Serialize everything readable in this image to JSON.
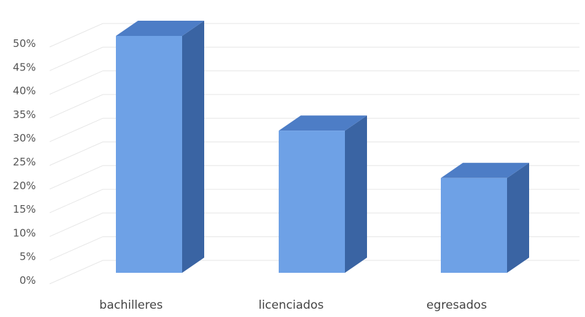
{
  "chart_data": {
    "type": "bar",
    "style": "3d-column",
    "categories": [
      "bachilleres",
      "licenciados",
      "egresados"
    ],
    "values": [
      50,
      30,
      20
    ],
    "unit": "%",
    "ylim": [
      0,
      50
    ],
    "yticks": [
      "0%",
      "5%",
      "10%",
      "15%",
      "20%",
      "25%",
      "30%",
      "35%",
      "40%",
      "45%",
      "50%"
    ],
    "title": "",
    "xlabel": "",
    "ylabel": "",
    "grid": true,
    "legend": "none",
    "colors": {
      "front": "#6ea1e6",
      "top": "#4d7dc6",
      "side": "#3a64a3"
    }
  }
}
